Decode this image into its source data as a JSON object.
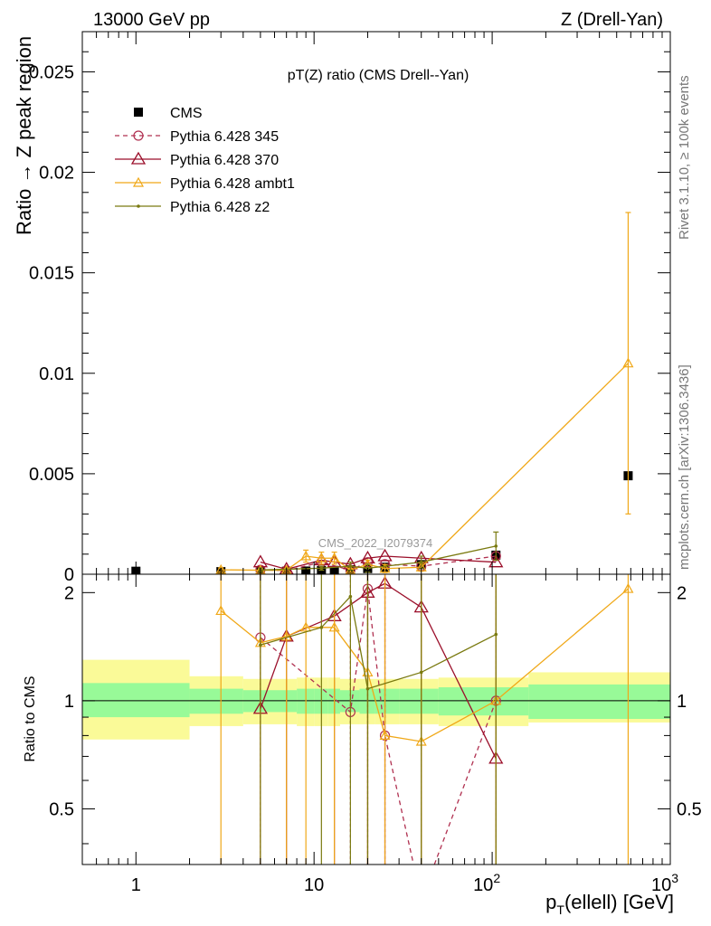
{
  "header": {
    "left": "13000 GeV pp",
    "right": "Z (Drell-Yan)"
  },
  "side_labels": {
    "rivet": "Rivet 3.1.10, ≥ 100k events",
    "site": "mcplots.cern.ch [arXiv:1306.3436]"
  },
  "watermark": "CMS_2022_I2079374",
  "colors": {
    "cms": "#000000",
    "p345": "#b03050",
    "p370": "#9b0f2a",
    "ambt1": "#f0a818",
    "z2": "#7a7a10",
    "band_inner": "#98fa98",
    "band_outer": "#fafa98"
  },
  "chart_data": [
    {
      "type": "line",
      "title": "pT(Z) ratio (CMS Drell--Yan)",
      "ylabel": "Ratio → Z peak region",
      "xlabel": "",
      "xscale": "log",
      "xlim": [
        0.5,
        1000
      ],
      "ylim": [
        0,
        0.027
      ],
      "yticks": [
        "0",
        "0.005",
        "0.01",
        "0.015",
        "0.02",
        "0.025"
      ],
      "legend_position": "top-left",
      "legend": [
        "CMS",
        "Pythia 6.428 345",
        "Pythia 6.428 370",
        "Pythia 6.428 ambt1",
        "Pythia 6.428 z2"
      ],
      "series": [
        {
          "name": "CMS",
          "x": [
            1,
            3,
            5,
            7,
            9,
            11,
            13,
            16,
            20,
            25,
            40,
            105,
            580
          ],
          "y": [
            0.00015,
            0.00013,
            0.00014,
            0.00015,
            0.00016,
            0.00018,
            0.00019,
            0.00022,
            0.00028,
            0.00035,
            0.00048,
            0.00095,
            0.0049
          ]
        },
        {
          "name": "Pythia 6.428 345",
          "x": [
            5,
            7,
            11,
            16,
            20,
            25,
            40,
            105
          ],
          "y": [
            0.00022,
            0.00018,
            0.0006,
            0.0002,
            0.0006,
            0.0005,
            0.0004,
            0.0009
          ]
        },
        {
          "name": "Pythia 6.428 370",
          "x": [
            5,
            7,
            11,
            13,
            16,
            20,
            25,
            40,
            105
          ],
          "y": [
            0.0006,
            0.00025,
            0.0007,
            0.0006,
            0.0005,
            0.0008,
            0.0009,
            0.0008,
            0.0006
          ]
        },
        {
          "name": "Pythia 6.428 ambt1",
          "x": [
            3,
            5,
            7,
            9,
            11,
            13,
            16,
            20,
            25,
            40,
            580
          ],
          "y": [
            0.00022,
            0.0002,
            0.0002,
            0.0009,
            0.0008,
            0.0008,
            0.0002,
            0.0005,
            0.00028,
            0.00035,
            0.0105
          ],
          "yerr": [
            0.0001,
            0.0001,
            0.0001,
            0.0003,
            0.0003,
            0.0003,
            0.0001,
            0.0002,
            0.0002,
            0.0002,
            0.0075
          ]
        },
        {
          "name": "Pythia 6.428 z2",
          "x": [
            5,
            11,
            16,
            20,
            40,
            105
          ],
          "y": [
            0.00021,
            0.0003,
            0.0004,
            0.0003,
            0.0006,
            0.0014
          ],
          "yerr": [
            0.0001,
            0.0001,
            0.0002,
            0.0002,
            0.0003,
            0.0007
          ]
        }
      ]
    },
    {
      "type": "line",
      "title": "",
      "ylabel": "Ratio to CMS",
      "xlabel": "p_T(ellell) [GeV]",
      "xscale": "log",
      "xlim": [
        0.5,
        1000
      ],
      "ylim": [
        0.35,
        2.25
      ],
      "yscale": "log",
      "yticks": [
        "0.5",
        "1",
        "2"
      ],
      "xticks": [
        "1",
        "10",
        "10^2",
        "10^3"
      ],
      "band_edges": [
        0.5,
        2,
        4,
        6,
        8,
        10,
        12,
        14,
        18,
        22,
        30,
        50,
        160,
        1000
      ],
      "band_inner": [
        [
          0.9,
          1.12
        ],
        [
          0.92,
          1.08
        ],
        [
          0.93,
          1.07
        ],
        [
          0.93,
          1.07
        ],
        [
          0.92,
          1.08
        ],
        [
          0.92,
          1.08
        ],
        [
          0.92,
          1.08
        ],
        [
          0.93,
          1.07
        ],
        [
          0.92,
          1.08
        ],
        [
          0.92,
          1.08
        ],
        [
          0.92,
          1.08
        ],
        [
          0.91,
          1.09
        ],
        [
          0.89,
          1.11
        ]
      ],
      "band_outer": [
        [
          0.78,
          1.3
        ],
        [
          0.85,
          1.17
        ],
        [
          0.86,
          1.15
        ],
        [
          0.86,
          1.15
        ],
        [
          0.85,
          1.16
        ],
        [
          0.85,
          1.16
        ],
        [
          0.85,
          1.16
        ],
        [
          0.86,
          1.15
        ],
        [
          0.86,
          1.15
        ],
        [
          0.86,
          1.15
        ],
        [
          0.86,
          1.15
        ],
        [
          0.85,
          1.16
        ],
        [
          0.87,
          1.2
        ]
      ],
      "series": [
        {
          "name": "Pythia 6.428 345",
          "x": [
            5,
            16,
            20,
            25,
            40,
            105
          ],
          "y": [
            1.5,
            0.93,
            2.05,
            0.8,
            0.28,
            1.0
          ]
        },
        {
          "name": "Pythia 6.428 370",
          "x": [
            5,
            7,
            13,
            20,
            25,
            40,
            105
          ],
          "y": [
            0.95,
            1.51,
            1.72,
            2.0,
            2.12,
            1.82,
            0.69
          ]
        },
        {
          "name": "Pythia 6.428 ambt1",
          "x": [
            3,
            5,
            7,
            9,
            13,
            20,
            25,
            40,
            105,
            580
          ],
          "y": [
            1.78,
            1.45,
            1.51,
            1.6,
            1.6,
            1.2,
            0.8,
            0.77,
            1.0,
            2.05
          ]
        },
        {
          "name": "Pythia 6.428 z2",
          "x": [
            5,
            11,
            16,
            20,
            40,
            105
          ],
          "y": [
            1.43,
            1.6,
            1.95,
            1.08,
            1.2,
            1.53
          ]
        }
      ]
    }
  ]
}
